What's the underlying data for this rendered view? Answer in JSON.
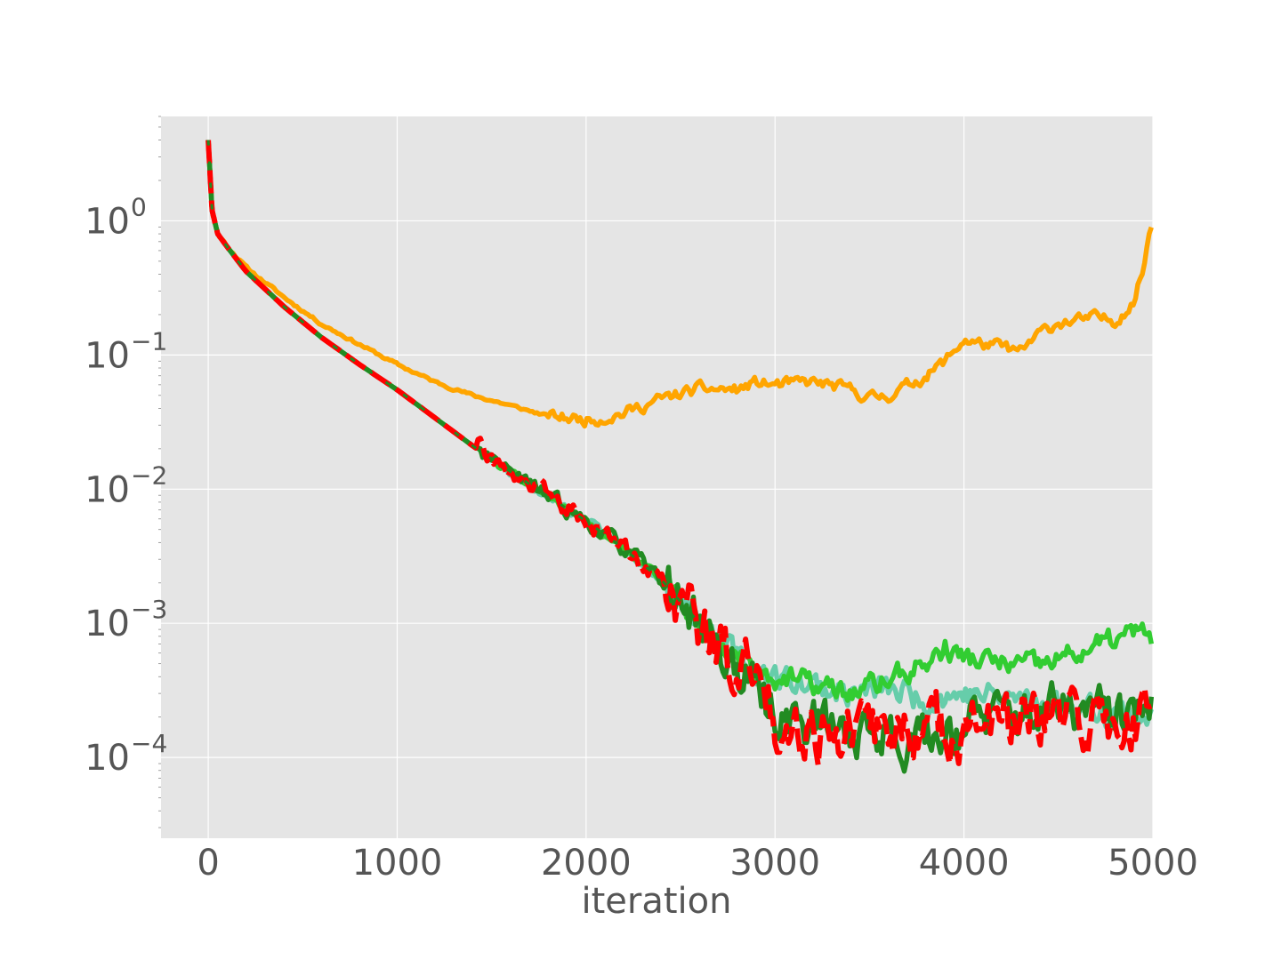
{
  "chart_data": {
    "type": "line",
    "title": "",
    "xlabel": "iteration",
    "ylabel": "",
    "xscale": "linear",
    "yscale": "log",
    "xlim": [
      -250,
      5000
    ],
    "ylim": [
      2.5e-05,
      6
    ],
    "grid": true,
    "legend": "none",
    "background_color": "#e5e5e5",
    "x_ticks": [
      0,
      1000,
      2000,
      3000,
      4000,
      5000
    ],
    "x_tick_labels": [
      "0",
      "1000",
      "2000",
      "3000",
      "4000",
      "5000"
    ],
    "y_ticks": [
      1,
      0.1,
      0.01,
      0.001,
      0.0001
    ],
    "y_tick_labels": [
      {
        "base": "10",
        "exp": "0"
      },
      {
        "base": "10",
        "exp": "−1"
      },
      {
        "base": "10",
        "exp": "−2"
      },
      {
        "base": "10",
        "exp": "−3"
      },
      {
        "base": "10",
        "exp": "−4"
      }
    ],
    "series": [
      {
        "color": "#ffa500",
        "style": "solid",
        "noise": 0.05,
        "seed": 11,
        "x": [
          0,
          20,
          50,
          100,
          200,
          400,
          600,
          800,
          1000,
          1200,
          1400,
          1600,
          1800,
          1900,
          2000,
          2100,
          2200,
          2400,
          2600,
          2800,
          2900,
          3000,
          3200,
          3400,
          3500,
          3600,
          3800,
          3900,
          4000,
          4100,
          4200,
          4300,
          4400,
          4500,
          4600,
          4700,
          4800,
          4900,
          4950,
          4980,
          5000
        ],
        "y": [
          4.0,
          1.2,
          0.8,
          0.65,
          0.45,
          0.27,
          0.17,
          0.12,
          0.085,
          0.063,
          0.05,
          0.042,
          0.035,
          0.034,
          0.033,
          0.034,
          0.037,
          0.047,
          0.056,
          0.055,
          0.062,
          0.06,
          0.063,
          0.055,
          0.048,
          0.05,
          0.07,
          0.09,
          0.13,
          0.12,
          0.115,
          0.105,
          0.145,
          0.175,
          0.18,
          0.19,
          0.18,
          0.25,
          0.45,
          0.8,
          1.0
        ]
      },
      {
        "color": "#66cdaa",
        "style": "solid",
        "noise": 0.12,
        "seed": 23,
        "x": [
          0,
          20,
          50,
          100,
          200,
          400,
          600,
          800,
          1000,
          1200,
          1400,
          1600,
          1800,
          2000,
          2200,
          2400,
          2500,
          2600,
          2700,
          2800,
          2900,
          3000,
          3200,
          3400,
          3600,
          3800,
          4000,
          4200,
          4400,
          4600,
          4800,
          5000
        ],
        "y": [
          4.0,
          1.2,
          0.8,
          0.64,
          0.42,
          0.23,
          0.135,
          0.085,
          0.055,
          0.034,
          0.021,
          0.0135,
          0.0088,
          0.0058,
          0.0036,
          0.0022,
          0.0016,
          0.0011,
          0.00075,
          0.00055,
          0.00045,
          0.0004,
          0.00035,
          0.0003,
          0.00032,
          0.00028,
          0.0003,
          0.00028,
          0.00026,
          0.00024,
          0.00022,
          0.0002
        ]
      },
      {
        "color": "#32cd32",
        "style": "solid",
        "noise": 0.1,
        "seed": 37,
        "x": [
          0,
          20,
          50,
          100,
          200,
          400,
          600,
          800,
          1000,
          1200,
          1400,
          1600,
          1800,
          2000,
          2200,
          2400,
          2500,
          2600,
          2700,
          2800,
          2900,
          3000,
          3200,
          3400,
          3600,
          3800,
          3900,
          4000,
          4200,
          4400,
          4600,
          4800,
          4900,
          5000
        ],
        "y": [
          4.0,
          1.2,
          0.8,
          0.64,
          0.42,
          0.23,
          0.135,
          0.085,
          0.055,
          0.034,
          0.021,
          0.0135,
          0.0088,
          0.0058,
          0.0036,
          0.0021,
          0.0015,
          0.001,
          0.00068,
          0.00058,
          0.00045,
          0.0004,
          0.00035,
          0.0003,
          0.00038,
          0.0005,
          0.00065,
          0.00055,
          0.0005,
          0.00048,
          0.0006,
          0.00075,
          0.00085,
          0.0008
        ]
      },
      {
        "color": "#228b22",
        "style": "solid",
        "noise": 0.22,
        "seed": 53,
        "x": [
          0,
          20,
          50,
          100,
          200,
          400,
          600,
          800,
          1000,
          1200,
          1400,
          1600,
          1800,
          2000,
          2200,
          2400,
          2500,
          2600,
          2700,
          2800,
          2900,
          3000,
          3200,
          3400,
          3600,
          3800,
          4000,
          4200,
          4400,
          4600,
          4800,
          5000
        ],
        "y": [
          4.0,
          1.2,
          0.8,
          0.64,
          0.42,
          0.23,
          0.135,
          0.085,
          0.055,
          0.034,
          0.021,
          0.0135,
          0.0088,
          0.0058,
          0.0036,
          0.0021,
          0.0015,
          0.001,
          0.00065,
          0.00045,
          0.0003,
          0.00022,
          0.00018,
          0.00016,
          0.00015,
          0.00014,
          0.00018,
          0.0002,
          0.00022,
          0.00022,
          0.0002,
          0.00022
        ]
      },
      {
        "color": "#ff0000",
        "style": "dashed",
        "noise": 0.26,
        "seed": 71,
        "x": [
          0,
          20,
          50,
          100,
          200,
          400,
          600,
          800,
          1000,
          1200,
          1400,
          1600,
          1800,
          2000,
          2200,
          2400,
          2500,
          2600,
          2700,
          2800,
          2900,
          3000,
          3200,
          3400,
          3600,
          3800,
          4000,
          4200,
          4400,
          4600,
          4800,
          5000
        ],
        "y": [
          4.0,
          1.2,
          0.8,
          0.64,
          0.42,
          0.23,
          0.135,
          0.085,
          0.055,
          0.034,
          0.021,
          0.0135,
          0.0088,
          0.0058,
          0.0036,
          0.0021,
          0.0015,
          0.001,
          0.00065,
          0.00048,
          0.0004,
          0.0002,
          0.00017,
          0.00015,
          0.00016,
          0.00016,
          0.00017,
          0.00018,
          0.00017,
          0.0002,
          0.00018,
          0.0002
        ]
      },
      {
        "color": "#228b22",
        "style": "dashed-overlay",
        "noise": 0.0,
        "seed": 0,
        "x": [
          0,
          20,
          50,
          100,
          200,
          400,
          600,
          800,
          1000,
          1200,
          1400,
          1600,
          1800,
          2000,
          2200,
          2400,
          2600
        ],
        "y": [
          4.0,
          1.2,
          0.8,
          0.64,
          0.42,
          0.23,
          0.135,
          0.085,
          0.055,
          0.034,
          0.021,
          0.0135,
          0.0088,
          0.0058,
          0.0036,
          0.0021,
          0.001
        ]
      }
    ]
  }
}
